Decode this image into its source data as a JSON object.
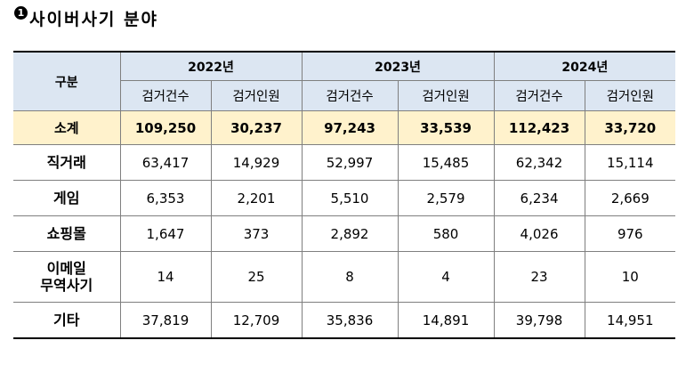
{
  "title": {
    "marker": "1",
    "text": "사이버사기 분야"
  },
  "table": {
    "corner_label": "구분",
    "years": [
      "2022년",
      "2023년",
      "2024년"
    ],
    "sub_headers": [
      "검거건수",
      "검거인원",
      "검거건수",
      "검거인원",
      "검거건수",
      "검거인원"
    ],
    "subtotal": {
      "label": "소계",
      "values": [
        "109,250",
        "30,237",
        "97,243",
        "33,539",
        "112,423",
        "33,720"
      ]
    },
    "rows": [
      {
        "label_lines": [
          "직거래"
        ],
        "values": [
          "63,417",
          "14,929",
          "52,997",
          "15,485",
          "62,342",
          "15,114"
        ]
      },
      {
        "label_lines": [
          "게임"
        ],
        "values": [
          "6,353",
          "2,201",
          "5,510",
          "2,579",
          "6,234",
          "2,669"
        ]
      },
      {
        "label_lines": [
          "쇼핑몰"
        ],
        "values": [
          "1,647",
          "373",
          "2,892",
          "580",
          "4,026",
          "976"
        ]
      },
      {
        "label_lines": [
          "이메일",
          "무역사기"
        ],
        "values": [
          "14",
          "25",
          "8",
          "4",
          "23",
          "10"
        ]
      },
      {
        "label_lines": [
          "기타"
        ],
        "values": [
          "37,819",
          "12,709",
          "35,836",
          "14,891",
          "39,798",
          "14,951"
        ]
      }
    ]
  },
  "colors": {
    "header_bg": "#dce6f2",
    "subtotal_bg": "#fff2cc",
    "grid": "#7f7f7f"
  }
}
